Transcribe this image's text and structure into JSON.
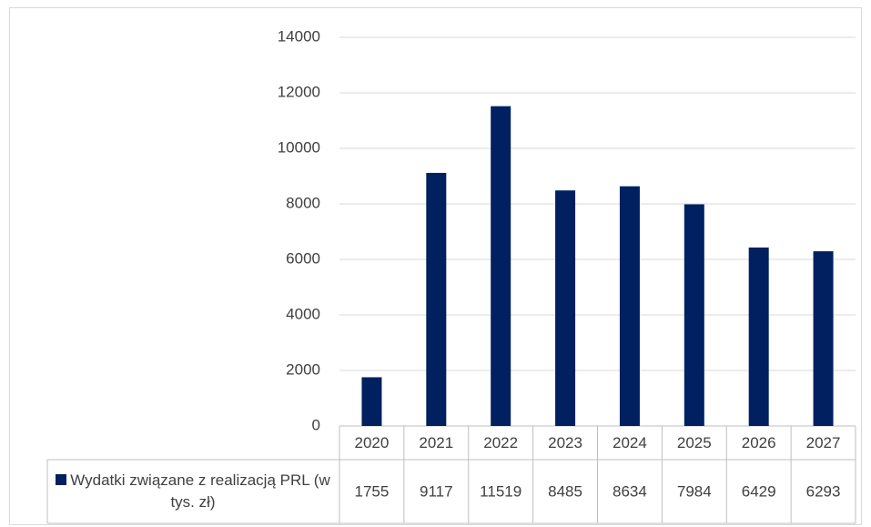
{
  "chart_data": {
    "type": "bar",
    "categories": [
      "2020",
      "2021",
      "2022",
      "2023",
      "2024",
      "2025",
      "2026",
      "2027"
    ],
    "series": [
      {
        "name": "Wydatki związane z realizacją PRL (w tys. zł)",
        "color": "#002060",
        "values": [
          1755,
          9117,
          11519,
          8485,
          8634,
          7984,
          6429,
          6293
        ]
      }
    ],
    "ylim": [
      0,
      14000
    ],
    "yticks": [
      0,
      2000,
      4000,
      6000,
      8000,
      10000,
      12000,
      14000
    ],
    "grid": true,
    "data_table": true
  }
}
